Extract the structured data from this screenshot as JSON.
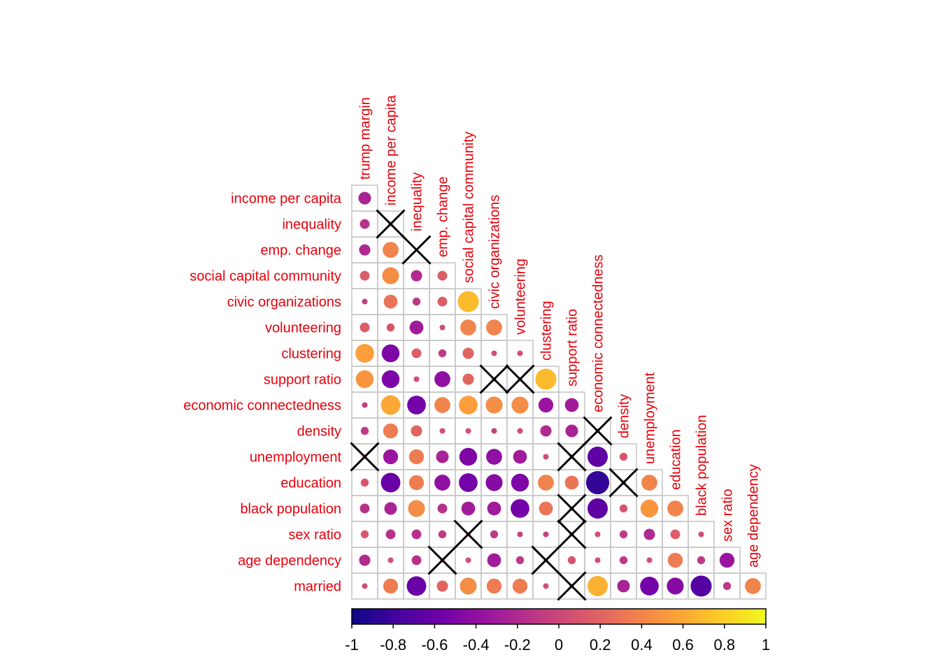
{
  "chart_data": {
    "type": "heatmap",
    "subtype": "lower-triangle correlation matrix (circles)",
    "rows": [
      "income per capita",
      "inequality",
      "emp. change",
      "social capital community",
      "civic organizations",
      "volunteering",
      "clustering",
      "support ratio",
      "economic connectedness",
      "density",
      "unemployment",
      "education",
      "black population",
      "sex ratio",
      "age dependency",
      "married"
    ],
    "columns": [
      "trump margin",
      "income per capita",
      "inequality",
      "emp. change",
      "social capital community",
      "civic organizations",
      "volunteering",
      "clustering",
      "support ratio",
      "economic connectedness",
      "density",
      "unemployment",
      "education",
      "black population",
      "sex ratio",
      "age dependency"
    ],
    "values": [
      [
        -0.25
      ],
      [
        -0.15,
        0
      ],
      [
        -0.2,
        0.4
      ],
      [
        0.15,
        0.45,
        -0.2,
        0.15
      ],
      [
        -0.05,
        0.3,
        -0.1,
        0.15,
        0.7
      ],
      [
        0.15,
        0.1,
        -0.3,
        0.05,
        0.4,
        0.4
      ],
      [
        0.55,
        -0.5,
        0.15,
        -0.1,
        0.2,
        0.05,
        0.05
      ],
      [
        0.5,
        -0.5,
        0.05,
        -0.4,
        0.2,
        0,
        0,
        0.7
      ],
      [
        -0.05,
        0.6,
        -0.55,
        0.4,
        0.55,
        0.45,
        0.45,
        -0.35,
        -0.3
      ],
      [
        -0.1,
        0.35,
        0.2,
        0.05,
        0.05,
        -0.05,
        0.05,
        -0.2,
        -0.25,
        0
      ],
      [
        0,
        -0.35,
        0.35,
        -0.25,
        -0.5,
        -0.4,
        -0.3,
        0.05,
        0,
        -0.65,
        0.1
      ],
      [
        0.1,
        -0.6,
        0.35,
        -0.4,
        -0.55,
        -0.45,
        -0.5,
        0.4,
        0.3,
        -0.85,
        0,
        0.4
      ],
      [
        -0.15,
        -0.25,
        0.45,
        -0.15,
        -0.3,
        -0.3,
        -0.55,
        0.3,
        0,
        -0.65,
        0.1,
        0.5,
        0.4
      ],
      [
        0.1,
        -0.15,
        -0.15,
        -0.1,
        0,
        -0.1,
        -0.05,
        -0.05,
        0,
        0.05,
        -0.1,
        -0.2,
        0.15,
        0.05
      ],
      [
        -0.2,
        0.05,
        -0.15,
        0,
        0.05,
        -0.3,
        -0.1,
        0,
        0.1,
        0.05,
        -0.1,
        0.05,
        0.35,
        -0.1,
        -0.35
      ],
      [
        0.05,
        0.35,
        -0.6,
        0.2,
        0.45,
        0.35,
        0.35,
        0.05,
        0,
        0.65,
        -0.25,
        -0.55,
        -0.45,
        -0.7,
        -0.1,
        0.4
      ]
    ],
    "insignificant": [
      [
        1,
        1
      ],
      [
        2,
        2
      ],
      [
        7,
        5
      ],
      [
        7,
        6
      ],
      [
        9,
        9
      ],
      [
        10,
        0
      ],
      [
        10,
        8
      ],
      [
        11,
        10
      ],
      [
        12,
        8
      ],
      [
        13,
        4
      ],
      [
        13,
        8
      ],
      [
        14,
        3
      ],
      [
        14,
        7
      ],
      [
        15,
        8
      ]
    ],
    "colorbar": {
      "min": -1,
      "max": 1,
      "ticks": [
        "-1",
        "-0.8",
        "-0.6",
        "-0.4",
        "-0.2",
        "0",
        "0.2",
        "0.4",
        "0.6",
        "0.8",
        "1"
      ],
      "stops": [
        "#0d0887",
        "#46039f",
        "#7201a8",
        "#9c179e",
        "#bd3786",
        "#d8576b",
        "#ed7953",
        "#fb9f3a",
        "#fdca26",
        "#f0f921"
      ]
    },
    "label_color": "#e8000b",
    "grid": true
  }
}
